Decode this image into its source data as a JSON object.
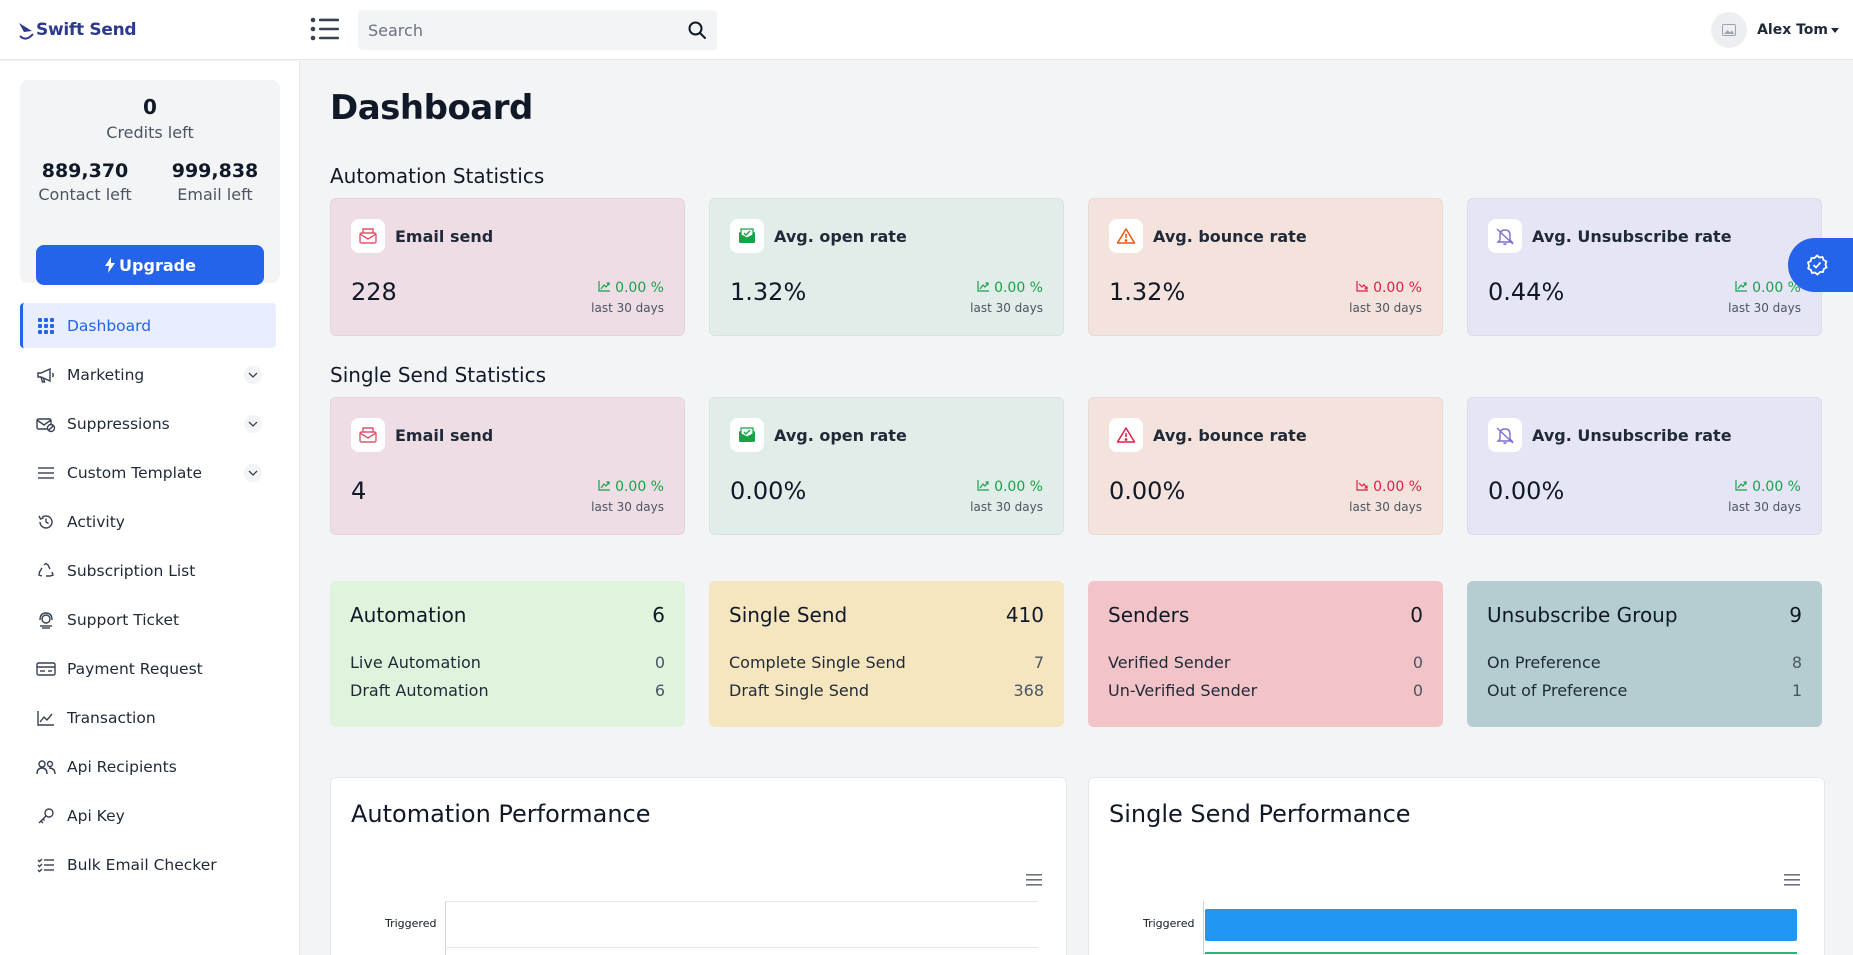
{
  "app": {
    "name": "Swift Send"
  },
  "header": {
    "search_placeholder": "Search",
    "user_name": "Alex Tom"
  },
  "sidebar": {
    "credits": {
      "value": "0",
      "label": "Credits left"
    },
    "contacts": {
      "value": "889,370",
      "label": "Contact left"
    },
    "emails": {
      "value": "999,838",
      "label": "Email left"
    },
    "upgrade_label": "Upgrade",
    "items": [
      {
        "label": "Dashboard",
        "icon": "grid-icon",
        "active": true
      },
      {
        "label": "Marketing",
        "icon": "megaphone-icon",
        "expandable": true
      },
      {
        "label": "Suppressions",
        "icon": "mail-block-icon",
        "expandable": true
      },
      {
        "label": "Custom Template",
        "icon": "lines-icon",
        "expandable": true
      },
      {
        "label": "Activity",
        "icon": "history-icon"
      },
      {
        "label": "Subscription List",
        "icon": "recycle-icon"
      },
      {
        "label": "Support Ticket",
        "icon": "support-icon"
      },
      {
        "label": "Payment Request",
        "icon": "card-icon"
      },
      {
        "label": "Transaction",
        "icon": "trend-chart-icon"
      },
      {
        "label": "Api Recipients",
        "icon": "users-icon"
      },
      {
        "label": "Api Key",
        "icon": "key-icon"
      },
      {
        "label": "Bulk Email Checker",
        "icon": "checklist-icon"
      }
    ]
  },
  "main": {
    "title": "Dashboard",
    "automation_section": "Automation Statistics",
    "single_section": "Single Send Statistics",
    "automation_stats": [
      {
        "title": "Email send",
        "value": "228",
        "trend": "0.00 %",
        "direction": "up",
        "period": "last 30 days",
        "bg": "#efdde6",
        "icon_color": "#e0546c"
      },
      {
        "title": "Avg. open rate",
        "value": "1.32%",
        "trend": "0.00 %",
        "direction": "up",
        "period": "last 30 days",
        "bg": "#e1ede8",
        "icon_color": "#16a34a"
      },
      {
        "title": "Avg. bounce rate",
        "value": "1.32%",
        "trend": "0.00 %",
        "direction": "down",
        "period": "last 30 days",
        "bg": "#f4e3dd",
        "icon_color": "#ea580c"
      },
      {
        "title": "Avg. Unsubscribe rate",
        "value": "0.44%",
        "trend": "0.00 %",
        "direction": "up",
        "period": "last 30 days",
        "bg": "#e6e5f5",
        "icon_color": "#7c6fd1"
      }
    ],
    "single_stats": [
      {
        "title": "Email send",
        "value": "4",
        "trend": "0.00 %",
        "direction": "up",
        "period": "last 30 days",
        "bg": "#efdde6",
        "icon_color": "#e0546c"
      },
      {
        "title": "Avg. open rate",
        "value": "0.00%",
        "trend": "0.00 %",
        "direction": "up",
        "period": "last 30 days",
        "bg": "#e1ede8",
        "icon_color": "#16a34a"
      },
      {
        "title": "Avg. bounce rate",
        "value": "0.00%",
        "trend": "0.00 %",
        "direction": "down",
        "period": "last 30 days",
        "bg": "#f4e3dd",
        "icon_color": "#e11d48"
      },
      {
        "title": "Avg. Unsubscribe rate",
        "value": "0.00%",
        "trend": "0.00 %",
        "direction": "up",
        "period": "last 30 days",
        "bg": "#e6e5f5",
        "icon_color": "#7c6fd1"
      }
    ],
    "summaries": [
      {
        "title": "Automation",
        "total": "6",
        "bg": "#dff3dd",
        "rows": [
          {
            "k": "Live Automation",
            "v": "0"
          },
          {
            "k": "Draft Automation",
            "v": "6"
          }
        ]
      },
      {
        "title": "Single Send",
        "total": "410",
        "bg": "#f5e6c0",
        "rows": [
          {
            "k": "Complete Single Send",
            "v": "7"
          },
          {
            "k": "Draft Single Send",
            "v": "368"
          }
        ]
      },
      {
        "title": "Senders",
        "total": "0",
        "bg": "#f2c4c8",
        "rows": [
          {
            "k": "Verified Sender",
            "v": "0"
          },
          {
            "k": "Un-Verified Sender",
            "v": "0"
          }
        ]
      },
      {
        "title": "Unsubscribe Group",
        "total": "9",
        "bg": "#b4cdd0",
        "rows": [
          {
            "k": "On Preference",
            "v": "8"
          },
          {
            "k": "Out of Preference",
            "v": "1"
          }
        ]
      }
    ],
    "perf": [
      {
        "title": "Automation Performance",
        "category": "Triggered"
      },
      {
        "title": "Single Send Performance",
        "category": "Triggered"
      }
    ]
  },
  "colors": {
    "accent": "#2563eb",
    "up": "#16a34a",
    "down": "#e11d48",
    "bar": "#2196f3"
  }
}
